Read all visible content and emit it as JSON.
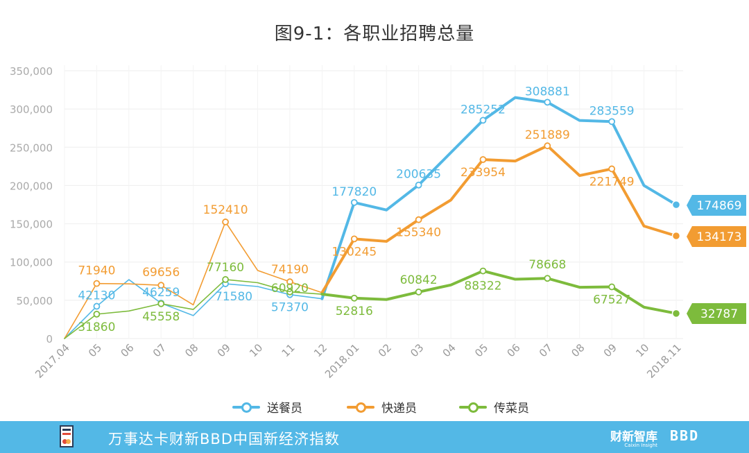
{
  "title": "图9-1：各职业招聘总量",
  "footer": {
    "text": "万事达卡财新BBD中国新经济指数",
    "brand_caixin": "财新智库",
    "brand_caixin_sub": "Caixin Insight",
    "brand_bbd": "BBD"
  },
  "legend": [
    {
      "label": "送餐员",
      "color": "#53b8e6"
    },
    {
      "label": "快递员",
      "color": "#f29c32"
    },
    {
      "label": "传菜员",
      "color": "#7dbb3c"
    }
  ],
  "chart_data": {
    "type": "line",
    "title": "图9-1：各职业招聘总量",
    "categories": [
      "2017.04",
      "05",
      "06",
      "07",
      "08",
      "09",
      "10",
      "11",
      "12",
      "2018.01",
      "02",
      "03",
      "04",
      "05",
      "06",
      "07",
      "08",
      "09",
      "10",
      "2018.11"
    ],
    "ylim": [
      0,
      350000
    ],
    "yticks": [
      "350,000",
      "300,000",
      "250,000",
      "200,000",
      "150,000",
      "100,000",
      "50,000",
      "0"
    ],
    "grid": true,
    "legend_position": "bottom",
    "series": [
      {
        "name": "送餐员",
        "color": "#53b8e6",
        "values": [
          0,
          42130,
          77000,
          46259,
          30000,
          71580,
          68000,
          57370,
          52000,
          177820,
          168000,
          200635,
          243000,
          285252,
          315000,
          308881,
          285000,
          283559,
          200000,
          174869
        ],
        "labels": [
          {
            "index": 1,
            "text": "42130"
          },
          {
            "index": 3,
            "text": "46259"
          },
          {
            "index": 5,
            "text": "71580"
          },
          {
            "index": 7,
            "text": "57370"
          },
          {
            "index": 9,
            "text": "177820"
          },
          {
            "index": 11,
            "text": "200635"
          },
          {
            "index": 13,
            "text": "285252"
          },
          {
            "index": 15,
            "text": "308881"
          },
          {
            "index": 17,
            "text": "283559"
          }
        ],
        "end_badge": "174869"
      },
      {
        "name": "快递员",
        "color": "#f29c32",
        "values": [
          0,
          71940,
          71500,
          69656,
          44000,
          152410,
          89000,
          74190,
          60000,
          130245,
          127000,
          155340,
          181000,
          233954,
          232000,
          251889,
          213000,
          221749,
          147000,
          134173
        ],
        "labels": [
          {
            "index": 1,
            "text": "71940"
          },
          {
            "index": 3,
            "text": "69656"
          },
          {
            "index": 5,
            "text": "152410"
          },
          {
            "index": 7,
            "text": "74190"
          },
          {
            "index": 9,
            "text": "130245"
          },
          {
            "index": 11,
            "text": "155340"
          },
          {
            "index": 13,
            "text": "233954"
          },
          {
            "index": 15,
            "text": "251889"
          },
          {
            "index": 17,
            "text": "221749"
          }
        ],
        "end_badge": "134173"
      },
      {
        "name": "传菜员",
        "color": "#7dbb3c",
        "values": [
          0,
          31860,
          36000,
          45558,
          38000,
          77160,
          73000,
          60920,
          58000,
          52816,
          51000,
          60842,
          70000,
          88322,
          77500,
          78668,
          67000,
          67527,
          41000,
          32787
        ],
        "labels": [
          {
            "index": 1,
            "text": "31860"
          },
          {
            "index": 3,
            "text": "45558"
          },
          {
            "index": 5,
            "text": "77160"
          },
          {
            "index": 7,
            "text": "60920"
          },
          {
            "index": 9,
            "text": "52816"
          },
          {
            "index": 11,
            "text": "60842"
          },
          {
            "index": 13,
            "text": "88322"
          },
          {
            "index": 15,
            "text": "78668"
          },
          {
            "index": 17,
            "text": "67527"
          }
        ],
        "end_badge": "32787"
      }
    ]
  }
}
